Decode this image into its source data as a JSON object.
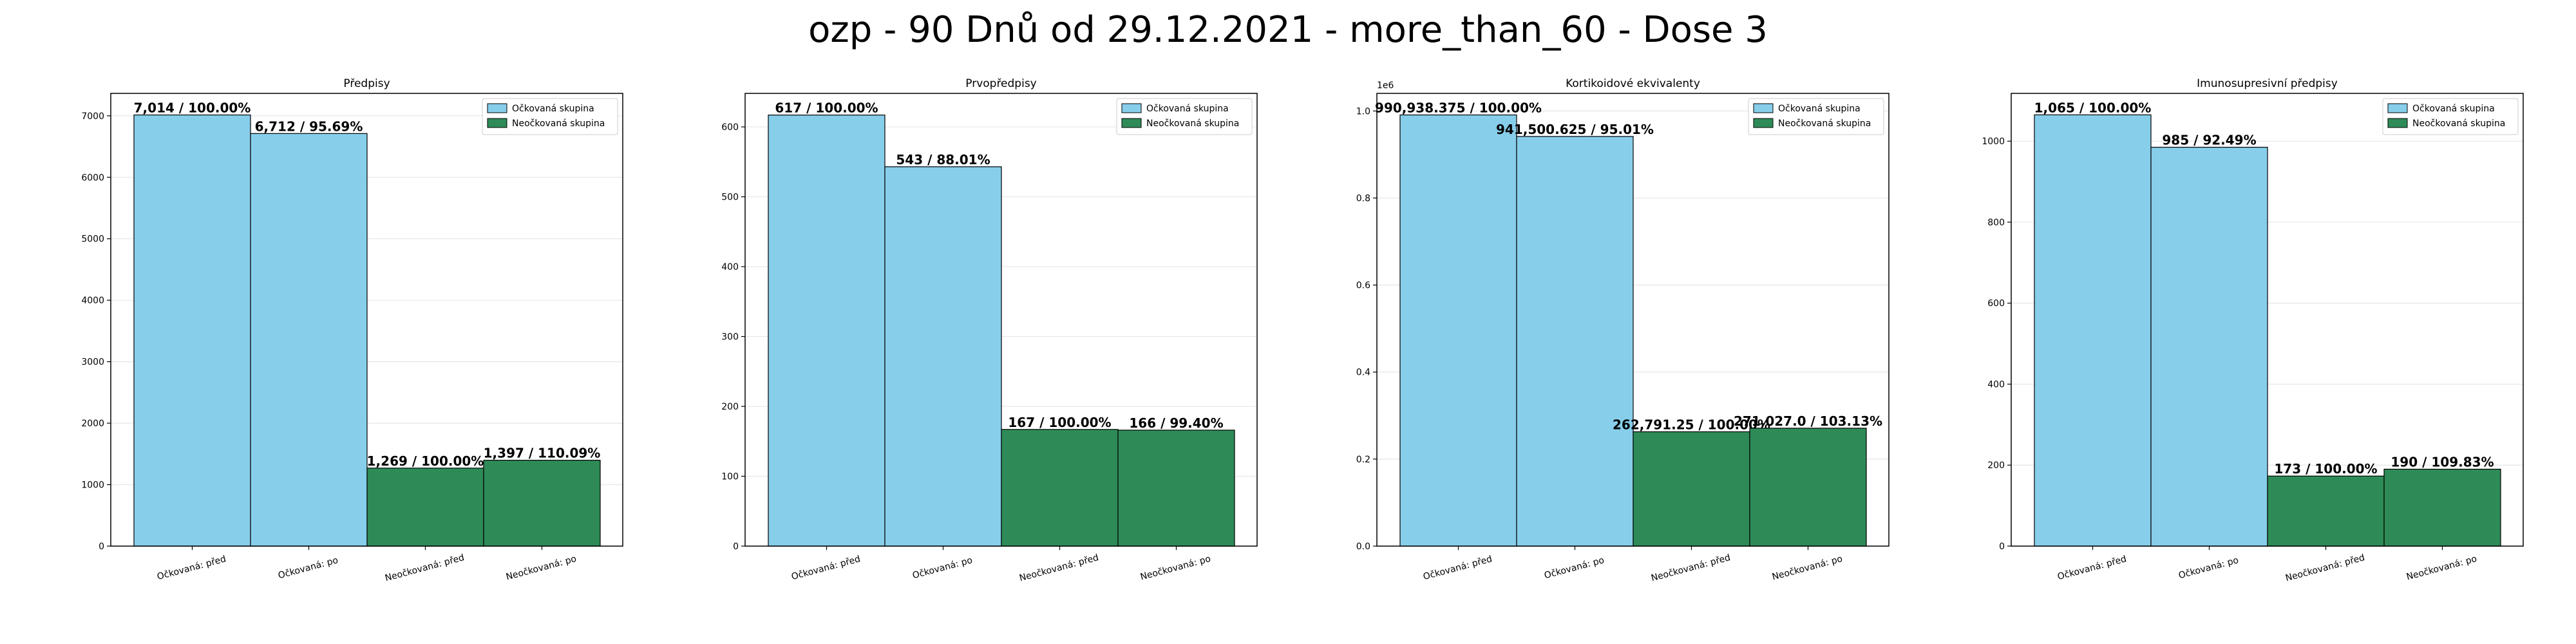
{
  "suptitle": "ozp - 90 Dnů od 29.12.2021 - more_than_60 - Dose 3",
  "colors": {
    "vaccinated": "#87ceeb",
    "unvaccinated": "#2e8b57",
    "edge": "#000000",
    "grid": "#e6e6e6"
  },
  "chart_data": [
    {
      "type": "bar",
      "title": "Předpisy",
      "categories": [
        "Očkovaná: před",
        "Očkovaná: po",
        "Neočkovaná: před",
        "Neočkovaná: po"
      ],
      "values": [
        7014,
        6712,
        1269,
        1397
      ],
      "data_labels": [
        "7,014 / 100.00%",
        "6,712 / 95.69%",
        "1,269 / 100.00%",
        "1,397 / 110.09%"
      ],
      "groups": [
        "Očkovaná skupina",
        "Očkovaná skupina",
        "Neočkovaná skupina",
        "Neočkovaná skupina"
      ],
      "legend": [
        "Očkovaná skupina",
        "Neočkovaná skupina"
      ],
      "ylim": [
        0,
        7365
      ],
      "yticks": [
        0,
        1000,
        2000,
        3000,
        4000,
        5000,
        6000,
        7000
      ],
      "ytick_labels": [
        "0",
        "1000",
        "2000",
        "3000",
        "4000",
        "5000",
        "6000",
        "7000"
      ],
      "y_multiplier": "",
      "grid": "horizontal",
      "legend_position": "top-right"
    },
    {
      "type": "bar",
      "title": "Prvopředpisy",
      "categories": [
        "Očkovaná: před",
        "Očkovaná: po",
        "Neočkovaná: před",
        "Neočkovaná: po"
      ],
      "values": [
        617,
        543,
        167,
        166
      ],
      "data_labels": [
        "617 / 100.00%",
        "543 / 88.01%",
        "167 / 100.00%",
        "166 / 99.40%"
      ],
      "groups": [
        "Očkovaná skupina",
        "Očkovaná skupina",
        "Neočkovaná skupina",
        "Neočkovaná skupina"
      ],
      "legend": [
        "Očkovaná skupina",
        "Neočkovaná skupina"
      ],
      "ylim": [
        0,
        648
      ],
      "yticks": [
        0,
        100,
        200,
        300,
        400,
        500,
        600
      ],
      "ytick_labels": [
        "0",
        "100",
        "200",
        "300",
        "400",
        "500",
        "600"
      ],
      "y_multiplier": "",
      "grid": "horizontal",
      "legend_position": "top-right"
    },
    {
      "type": "bar",
      "title": "Kortikoidové ekvivalenty",
      "categories": [
        "Očkovaná: před",
        "Očkovaná: po",
        "Neočkovaná: před",
        "Neočkovaná: po"
      ],
      "values": [
        990938.375,
        941500.625,
        262791.25,
        271027.0
      ],
      "data_labels": [
        "990,938.375 / 100.00%",
        "941,500.625 / 95.01%",
        "262,791.25 / 100.00%",
        "271,027.0 / 103.13%"
      ],
      "groups": [
        "Očkovaná skupina",
        "Očkovaná skupina",
        "Neočkovaná skupina",
        "Neočkovaná skupina"
      ],
      "legend": [
        "Očkovaná skupina",
        "Neočkovaná skupina"
      ],
      "ylim": [
        0,
        1040485
      ],
      "yticks": [
        0,
        200000,
        400000,
        600000,
        800000,
        1000000
      ],
      "ytick_labels": [
        "0.0",
        "0.2",
        "0.4",
        "0.6",
        "0.8",
        "1.0"
      ],
      "y_multiplier": "1e6",
      "grid": "horizontal",
      "legend_position": "top-right"
    },
    {
      "type": "bar",
      "title": "Imunosupresivní předpisy",
      "categories": [
        "Očkovaná: před",
        "Očkovaná: po",
        "Neočkovaná: před",
        "Neočkovaná: po"
      ],
      "values": [
        1065,
        985,
        173,
        190
      ],
      "data_labels": [
        "1,065 / 100.00%",
        "985 / 92.49%",
        "173 / 100.00%",
        "190 / 109.83%"
      ],
      "groups": [
        "Očkovaná skupina",
        "Očkovaná skupina",
        "Neočkovaná skupina",
        "Neočkovaná skupina"
      ],
      "legend": [
        "Očkovaná skupina",
        "Neočkovaná skupina"
      ],
      "ylim": [
        0,
        1118
      ],
      "yticks": [
        0,
        200,
        400,
        600,
        800,
        1000
      ],
      "ytick_labels": [
        "0",
        "200",
        "400",
        "600",
        "800",
        "1000"
      ],
      "y_multiplier": "",
      "grid": "horizontal",
      "legend_position": "top-right"
    }
  ]
}
